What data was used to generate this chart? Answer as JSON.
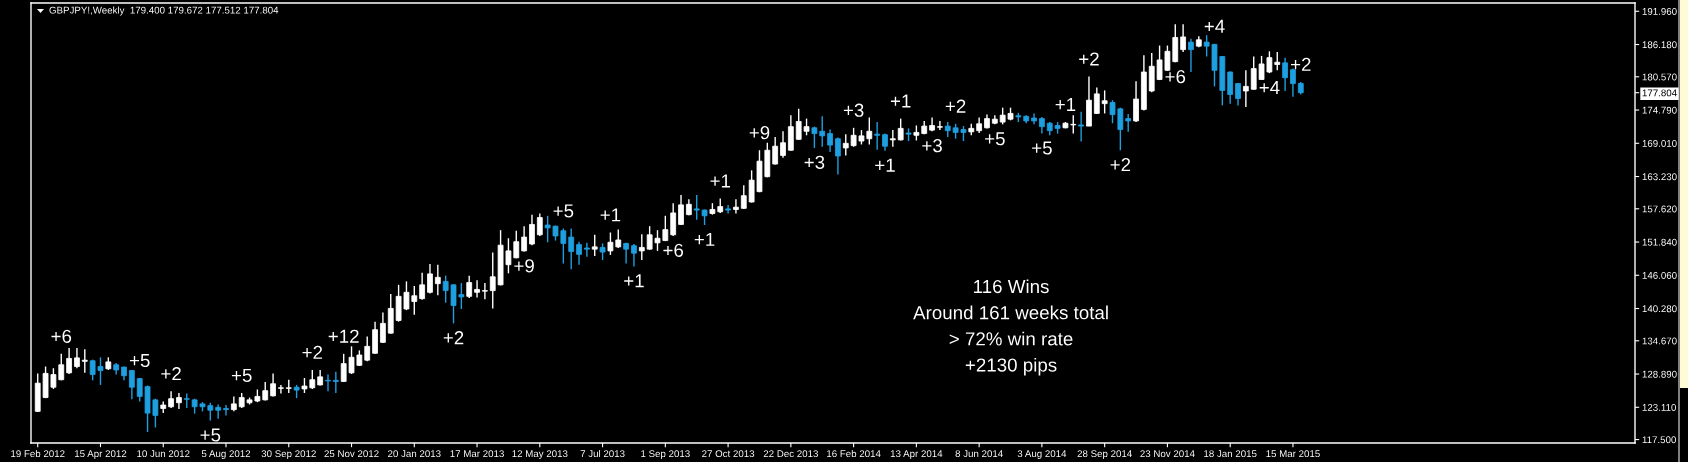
{
  "chart_data": {
    "type": "candlestick",
    "title": "GBPJPY!,Weekly  179.400 179.672 177.512 177.804",
    "x": [
      "2012-02-19",
      "2012-02-26",
      "2012-03-04",
      "2012-03-11",
      "2012-03-18",
      "2012-03-25",
      "2012-04-01",
      "2012-04-08",
      "2012-04-15",
      "2012-04-22",
      "2012-04-29",
      "2012-05-06",
      "2012-05-13",
      "2012-05-20",
      "2012-05-27",
      "2012-06-03",
      "2012-06-10",
      "2012-06-17",
      "2012-06-24",
      "2012-07-01",
      "2012-07-08",
      "2012-07-15",
      "2012-07-22",
      "2012-07-29",
      "2012-08-05",
      "2012-08-12",
      "2012-08-19",
      "2012-08-26",
      "2012-09-02",
      "2012-09-09",
      "2012-09-16",
      "2012-09-23",
      "2012-09-30",
      "2012-10-07",
      "2012-10-14",
      "2012-10-21",
      "2012-10-28",
      "2012-11-04",
      "2012-11-11",
      "2012-11-18",
      "2012-11-25",
      "2012-12-02",
      "2012-12-09",
      "2012-12-16",
      "2012-12-23",
      "2012-12-30",
      "2013-01-06",
      "2013-01-13",
      "2013-01-20",
      "2013-01-27",
      "2013-02-03",
      "2013-02-10",
      "2013-02-17",
      "2013-02-24",
      "2013-03-03",
      "2013-03-10",
      "2013-03-17",
      "2013-03-24",
      "2013-03-31",
      "2013-04-07",
      "2013-04-14",
      "2013-04-21",
      "2013-04-28",
      "2013-05-05",
      "2013-05-12",
      "2013-05-19",
      "2013-05-26",
      "2013-06-02",
      "2013-06-09",
      "2013-06-16",
      "2013-06-23",
      "2013-06-30",
      "2013-07-07",
      "2013-07-14",
      "2013-07-21",
      "2013-07-28",
      "2013-08-04",
      "2013-08-11",
      "2013-08-18",
      "2013-08-25",
      "2013-09-01",
      "2013-09-08",
      "2013-09-15",
      "2013-09-22",
      "2013-09-29",
      "2013-10-06",
      "2013-10-13",
      "2013-10-20",
      "2013-10-27",
      "2013-11-03",
      "2013-11-10",
      "2013-11-17",
      "2013-11-24",
      "2013-12-01",
      "2013-12-08",
      "2013-12-15",
      "2013-12-22",
      "2013-12-29",
      "2014-01-05",
      "2014-01-12",
      "2014-01-19",
      "2014-01-26",
      "2014-02-02",
      "2014-02-09",
      "2014-02-16",
      "2014-02-23",
      "2014-03-02",
      "2014-03-09",
      "2014-03-16",
      "2014-03-23",
      "2014-03-30",
      "2014-04-06",
      "2014-04-13",
      "2014-04-20",
      "2014-04-27",
      "2014-05-04",
      "2014-05-11",
      "2014-05-18",
      "2014-05-25",
      "2014-06-01",
      "2014-06-08",
      "2014-06-15",
      "2014-06-22",
      "2014-06-29",
      "2014-07-06",
      "2014-07-13",
      "2014-07-20",
      "2014-07-27",
      "2014-08-03",
      "2014-08-10",
      "2014-08-17",
      "2014-08-24",
      "2014-08-31",
      "2014-09-07",
      "2014-09-14",
      "2014-09-21",
      "2014-09-28",
      "2014-10-05",
      "2014-10-12",
      "2014-10-19",
      "2014-10-26",
      "2014-11-02",
      "2014-11-09",
      "2014-11-16",
      "2014-11-23",
      "2014-11-30",
      "2014-12-07",
      "2014-12-14",
      "2014-12-21",
      "2014-12-28",
      "2015-01-04",
      "2015-01-11",
      "2015-01-18",
      "2015-01-25",
      "2015-02-01",
      "2015-02-08",
      "2015-02-15",
      "2015-02-22",
      "2015-03-01",
      "2015-03-08",
      "2015-03-15",
      "2015-03-22"
    ],
    "ohlc": [
      [
        122.4,
        129.0,
        122.3,
        127.3
      ],
      [
        124.8,
        130.2,
        124.7,
        129.0
      ],
      [
        126.6,
        129.9,
        126.3,
        128.8
      ],
      [
        127.9,
        132.4,
        127.8,
        130.5
      ],
      [
        129.1,
        133.4,
        128.9,
        131.6
      ],
      [
        130.2,
        133.4,
        129.9,
        131.7
      ],
      [
        131.1,
        133.2,
        129.1,
        131.3
      ],
      [
        131.2,
        131.4,
        127.8,
        128.8
      ],
      [
        130.2,
        131.8,
        127.0,
        129.5
      ],
      [
        129.8,
        131.8,
        129.6,
        131.0
      ],
      [
        130.5,
        130.8,
        128.8,
        129.6
      ],
      [
        130.1,
        130.2,
        127.8,
        128.6
      ],
      [
        129.5,
        129.6,
        124.5,
        126.6
      ],
      [
        128.1,
        128.2,
        124.1,
        125.0
      ],
      [
        126.7,
        126.9,
        118.8,
        122.1
      ],
      [
        124.4,
        124.6,
        119.6,
        121.7
      ],
      [
        122.9,
        124.1,
        122.1,
        123.5
      ],
      [
        123.2,
        125.9,
        123.0,
        124.6
      ],
      [
        123.9,
        125.6,
        122.8,
        124.8
      ],
      [
        124.6,
        125.5,
        123.0,
        124.5
      ],
      [
        124.4,
        124.6,
        122.0,
        123.2
      ],
      [
        123.7,
        124.0,
        122.4,
        123.2
      ],
      [
        123.4,
        123.9,
        120.8,
        122.6
      ],
      [
        123.1,
        123.6,
        121.1,
        122.6
      ],
      [
        122.9,
        123.5,
        121.7,
        122.7
      ],
      [
        122.7,
        125.0,
        122.4,
        123.7
      ],
      [
        123.2,
        125.6,
        123.0,
        124.8
      ],
      [
        123.9,
        124.8,
        123.6,
        124.4
      ],
      [
        124.2,
        126.2,
        124.0,
        125.0
      ],
      [
        124.4,
        127.5,
        124.3,
        126.0
      ],
      [
        125.1,
        129.0,
        125.0,
        127.2
      ],
      [
        126.4,
        127.0,
        125.5,
        126.5
      ],
      [
        126.4,
        127.9,
        125.6,
        126.5
      ],
      [
        126.6,
        127.0,
        124.7,
        126.1
      ],
      [
        126.3,
        128.2,
        125.6,
        126.8
      ],
      [
        126.5,
        129.6,
        126.3,
        127.9
      ],
      [
        127.0,
        129.6,
        126.9,
        128.4
      ],
      [
        127.8,
        128.8,
        125.9,
        127.7
      ],
      [
        127.8,
        129.3,
        125.6,
        127.6
      ],
      [
        127.6,
        132.4,
        127.5,
        130.7
      ],
      [
        129.1,
        133.7,
        128.9,
        131.8
      ],
      [
        130.4,
        133.0,
        130.3,
        132.2
      ],
      [
        131.3,
        135.4,
        131.1,
        133.7
      ],
      [
        132.5,
        138.0,
        132.4,
        136.6
      ],
      [
        134.4,
        139.6,
        134.3,
        137.7
      ],
      [
        136.0,
        142.8,
        135.9,
        140.3
      ],
      [
        138.2,
        144.4,
        138.0,
        142.4
      ],
      [
        140.2,
        145.0,
        140.0,
        143.1
      ],
      [
        141.5,
        144.2,
        139.2,
        142.5
      ],
      [
        142.0,
        146.5,
        141.8,
        144.4
      ],
      [
        143.1,
        148.0,
        142.9,
        146.3
      ],
      [
        144.6,
        147.9,
        142.6,
        145.7
      ],
      [
        145.0,
        146.0,
        141.3,
        143.4
      ],
      [
        144.4,
        144.5,
        137.7,
        140.8
      ],
      [
        142.7,
        144.7,
        140.2,
        142.3
      ],
      [
        142.4,
        146.0,
        142.1,
        144.8
      ],
      [
        143.1,
        145.2,
        142.2,
        143.6
      ],
      [
        143.3,
        144.7,
        141.9,
        143.4
      ],
      [
        143.4,
        150.0,
        140.3,
        145.8
      ],
      [
        144.4,
        153.9,
        144.3,
        151.3
      ],
      [
        147.9,
        152.5,
        146.4,
        150.3
      ],
      [
        149.1,
        153.8,
        149.0,
        151.9
      ],
      [
        150.3,
        154.6,
        150.2,
        152.7
      ],
      [
        151.5,
        156.6,
        151.3,
        154.9
      ],
      [
        153.1,
        156.8,
        152.9,
        156.1
      ],
      [
        154.8,
        156.4,
        151.8,
        154.3
      ],
      [
        154.6,
        154.7,
        152.1,
        152.9
      ],
      [
        153.8,
        154.2,
        148.1,
        151.6
      ],
      [
        152.7,
        154.2,
        147.1,
        150.2
      ],
      [
        151.4,
        151.9,
        147.9,
        149.7
      ],
      [
        150.8,
        151.7,
        149.3,
        150.6
      ],
      [
        150.6,
        153.1,
        149.4,
        151.0
      ],
      [
        150.9,
        151.6,
        148.7,
        150.1
      ],
      [
        150.3,
        153.5,
        149.6,
        151.8
      ],
      [
        151.0,
        154.0,
        150.8,
        152.2
      ],
      [
        151.6,
        151.7,
        148.1,
        150.6
      ],
      [
        151.2,
        151.5,
        147.6,
        149.9
      ],
      [
        150.3,
        153.2,
        148.7,
        150.9
      ],
      [
        150.6,
        154.6,
        150.5,
        153.1
      ],
      [
        151.7,
        153.9,
        150.3,
        152.5
      ],
      [
        152.1,
        156.4,
        152.0,
        154.0
      ],
      [
        153.1,
        158.6,
        152.9,
        156.9
      ],
      [
        154.9,
        160.0,
        154.8,
        158.3
      ],
      [
        156.6,
        159.3,
        156.5,
        158.4
      ],
      [
        157.6,
        160.0,
        155.7,
        157.4
      ],
      [
        157.4,
        157.5,
        154.8,
        156.4
      ],
      [
        156.8,
        158.6,
        156.6,
        157.5
      ],
      [
        157.1,
        159.4,
        156.9,
        158.0
      ],
      [
        157.6,
        158.3,
        156.8,
        157.4
      ],
      [
        157.5,
        159.3,
        156.8,
        157.9
      ],
      [
        157.7,
        161.7,
        157.6,
        159.9
      ],
      [
        158.8,
        164.3,
        158.7,
        162.6
      ],
      [
        160.6,
        167.8,
        160.5,
        165.9
      ],
      [
        163.2,
        169.1,
        163.1,
        167.8
      ],
      [
        165.4,
        170.1,
        165.3,
        168.5
      ],
      [
        166.9,
        171.1,
        166.5,
        169.1
      ],
      [
        167.8,
        173.9,
        167.7,
        171.9
      ],
      [
        169.7,
        175.0,
        169.6,
        172.8
      ],
      [
        171.1,
        173.3,
        170.4,
        171.9
      ],
      [
        171.7,
        171.9,
        168.2,
        170.7
      ],
      [
        171.1,
        173.7,
        168.4,
        170.3
      ],
      [
        170.7,
        171.4,
        167.5,
        168.7
      ],
      [
        169.8,
        170.0,
        163.6,
        166.8
      ],
      [
        168.2,
        170.6,
        166.9,
        169.0
      ],
      [
        168.6,
        171.7,
        168.4,
        170.4
      ],
      [
        169.4,
        171.3,
        168.8,
        170.3
      ],
      [
        169.8,
        173.5,
        168.8,
        171.1
      ],
      [
        170.6,
        172.7,
        167.9,
        170.4
      ],
      [
        170.5,
        170.7,
        167.7,
        168.5
      ],
      [
        169.6,
        171.3,
        168.4,
        169.8
      ],
      [
        169.6,
        173.3,
        169.5,
        171.6
      ],
      [
        170.8,
        171.6,
        169.4,
        170.6
      ],
      [
        170.4,
        172.1,
        169.5,
        170.9
      ],
      [
        170.7,
        172.9,
        170.6,
        172.0
      ],
      [
        171.3,
        173.5,
        171.1,
        172.1
      ],
      [
        171.8,
        172.9,
        171.3,
        171.9
      ],
      [
        172.0,
        172.7,
        170.1,
        171.2
      ],
      [
        171.7,
        172.4,
        169.8,
        170.9
      ],
      [
        171.4,
        172.0,
        169.4,
        170.9
      ],
      [
        171.0,
        172.4,
        170.4,
        171.6
      ],
      [
        171.2,
        173.5,
        170.8,
        172.4
      ],
      [
        171.7,
        174.0,
        171.6,
        173.3
      ],
      [
        172.5,
        173.9,
        172.3,
        173.2
      ],
      [
        172.7,
        175.2,
        172.3,
        173.9
      ],
      [
        173.2,
        175.2,
        173.0,
        174.2
      ],
      [
        173.8,
        174.3,
        172.7,
        173.6
      ],
      [
        173.7,
        173.9,
        172.5,
        172.9
      ],
      [
        173.4,
        174.2,
        172.3,
        172.9
      ],
      [
        173.3,
        173.6,
        170.7,
        171.9
      ],
      [
        172.5,
        172.7,
        170.4,
        171.2
      ],
      [
        172.1,
        172.7,
        170.7,
        171.6
      ],
      [
        171.7,
        172.7,
        171.6,
        172.5
      ],
      [
        172.2,
        173.9,
        170.7,
        172.3
      ],
      [
        172.2,
        174.5,
        169.3,
        172.0
      ],
      [
        172.0,
        180.6,
        172.0,
        176.5
      ],
      [
        174.2,
        178.7,
        174.1,
        177.6
      ],
      [
        175.9,
        178.2,
        174.2,
        176.4
      ],
      [
        176.1,
        176.5,
        172.5,
        174.0
      ],
      [
        175.0,
        175.2,
        167.8,
        171.4
      ],
      [
        173.3,
        174.1,
        171.0,
        172.9
      ],
      [
        172.9,
        179.8,
        172.7,
        176.7
      ],
      [
        174.9,
        184.3,
        174.7,
        181.4
      ],
      [
        178.1,
        184.7,
        177.9,
        182.4
      ],
      [
        180.1,
        186.0,
        180.0,
        183.5
      ],
      [
        181.7,
        186.0,
        181.6,
        185.0
      ],
      [
        183.2,
        189.7,
        183.1,
        187.4
      ],
      [
        185.3,
        189.7,
        184.9,
        187.5
      ],
      [
        186.6,
        187.2,
        181.4,
        185.3
      ],
      [
        185.9,
        187.6,
        185.7,
        187.0
      ],
      [
        186.6,
        187.8,
        184.1,
        185.9
      ],
      [
        186.2,
        186.3,
        178.9,
        181.7
      ],
      [
        184.1,
        184.2,
        175.6,
        178.2
      ],
      [
        181.4,
        181.5,
        175.9,
        177.5
      ],
      [
        179.4,
        179.5,
        175.6,
        176.8
      ],
      [
        178.1,
        181.7,
        175.3,
        178.9
      ],
      [
        178.4,
        184.1,
        178.3,
        182.0
      ],
      [
        180.1,
        184.2,
        180.1,
        182.8
      ],
      [
        181.4,
        185.0,
        181.2,
        183.9
      ],
      [
        182.7,
        184.9,
        181.7,
        183.1
      ],
      [
        183.0,
        183.9,
        178.1,
        180.4
      ],
      [
        181.8,
        182.0,
        177.1,
        179.4
      ],
      [
        179.4,
        179.672,
        177.512,
        177.804
      ]
    ],
    "colors": [
      "#ffffff",
      "#ffffff",
      "#ffffff",
      "#ffffff",
      "#ffffff",
      "#ffffff",
      "#ffffff",
      "#1e9fe0",
      "#1e9fe0",
      "#ffffff",
      "#1e9fe0",
      "#1e9fe0",
      "#1e9fe0",
      "#1e9fe0",
      "#1e9fe0",
      "#1e9fe0",
      "#ffffff",
      "#ffffff",
      "#ffffff",
      "#1e9fe0",
      "#1e9fe0",
      "#1e9fe0",
      "#1e9fe0",
      "#1e9fe0",
      "#1e9fe0",
      "#ffffff",
      "#ffffff",
      "#ffffff",
      "#ffffff",
      "#ffffff",
      "#ffffff",
      "#ffffff",
      "#ffffff",
      "#1e9fe0",
      "#ffffff",
      "#ffffff",
      "#ffffff",
      "#1e9fe0",
      "#1e9fe0",
      "#ffffff",
      "#ffffff",
      "#ffffff",
      "#ffffff",
      "#ffffff",
      "#ffffff",
      "#ffffff",
      "#ffffff",
      "#ffffff",
      "#ffffff",
      "#ffffff",
      "#ffffff",
      "#ffffff",
      "#1e9fe0",
      "#1e9fe0",
      "#1e9fe0",
      "#ffffff",
      "#ffffff",
      "#ffffff",
      "#ffffff",
      "#ffffff",
      "#ffffff",
      "#ffffff",
      "#ffffff",
      "#ffffff",
      "#ffffff",
      "#1e9fe0",
      "#1e9fe0",
      "#1e9fe0",
      "#1e9fe0",
      "#1e9fe0",
      "#1e9fe0",
      "#ffffff",
      "#1e9fe0",
      "#ffffff",
      "#ffffff",
      "#1e9fe0",
      "#1e9fe0",
      "#ffffff",
      "#ffffff",
      "#ffffff",
      "#ffffff",
      "#ffffff",
      "#ffffff",
      "#ffffff",
      "#1e9fe0",
      "#1e9fe0",
      "#ffffff",
      "#ffffff",
      "#1e9fe0",
      "#ffffff",
      "#ffffff",
      "#ffffff",
      "#ffffff",
      "#ffffff",
      "#ffffff",
      "#ffffff",
      "#ffffff",
      "#ffffff",
      "#ffffff",
      "#1e9fe0",
      "#1e9fe0",
      "#1e9fe0",
      "#1e9fe0",
      "#ffffff",
      "#ffffff",
      "#ffffff",
      "#ffffff",
      "#1e9fe0",
      "#1e9fe0",
      "#ffffff",
      "#ffffff",
      "#1e9fe0",
      "#ffffff",
      "#ffffff",
      "#ffffff",
      "#ffffff",
      "#1e9fe0",
      "#1e9fe0",
      "#1e9fe0",
      "#ffffff",
      "#ffffff",
      "#ffffff",
      "#ffffff",
      "#ffffff",
      "#ffffff",
      "#1e9fe0",
      "#1e9fe0",
      "#1e9fe0",
      "#1e9fe0",
      "#1e9fe0",
      "#1e9fe0",
      "#ffffff",
      "#ffffff",
      "#1e9fe0",
      "#ffffff",
      "#ffffff",
      "#ffffff",
      "#1e9fe0",
      "#1e9fe0",
      "#1e9fe0",
      "#ffffff",
      "#ffffff",
      "#ffffff",
      "#ffffff",
      "#ffffff",
      "#ffffff",
      "#ffffff",
      "#1e9fe0",
      "#ffffff",
      "#1e9fe0",
      "#1e9fe0",
      "#1e9fe0",
      "#1e9fe0",
      "#1e9fe0",
      "#ffffff",
      "#ffffff",
      "#ffffff",
      "#ffffff",
      "#ffffff",
      "#1e9fe0",
      "#1e9fe0",
      "#1e9fe0"
    ],
    "xlim": [
      "2012-02-13T00:00",
      "2016-01-14T05:00"
    ],
    "xticks": [
      {
        "value": "2012-02-19",
        "label": "19 Feb 2012"
      },
      {
        "value": "2012-04-15",
        "label": "15 Apr 2012"
      },
      {
        "value": "2012-06-10",
        "label": "10 Jun 2012"
      },
      {
        "value": "2012-08-05",
        "label": "5 Aug 2012"
      },
      {
        "value": "2012-09-30",
        "label": "30 Sep 2012"
      },
      {
        "value": "2012-11-25",
        "label": "25 Nov 2012"
      },
      {
        "value": "2013-01-20",
        "label": "20 Jan 2013"
      },
      {
        "value": "2013-03-17",
        "label": "17 Mar 2013"
      },
      {
        "value": "2013-05-12",
        "label": "12 May 2013"
      },
      {
        "value": "2013-07-07",
        "label": "7 Jul 2013"
      },
      {
        "value": "2013-09-01",
        "label": "1 Sep 2013"
      },
      {
        "value": "2013-10-27",
        "label": "27 Oct 2013"
      },
      {
        "value": "2013-12-22",
        "label": "22 Dec 2013"
      },
      {
        "value": "2014-02-16",
        "label": "16 Feb 2014"
      },
      {
        "value": "2014-04-13",
        "label": "13 Apr 2014"
      },
      {
        "value": "2014-06-08",
        "label": "8 Jun 2014"
      },
      {
        "value": "2014-08-03",
        "label": "3 Aug 2014"
      },
      {
        "value": "2014-09-28",
        "label": "28 Sep 2014"
      },
      {
        "value": "2014-11-23",
        "label": "23 Nov 2014"
      },
      {
        "value": "2015-01-18",
        "label": "18 Jan 2015"
      },
      {
        "value": "2015-03-15",
        "label": "15 Mar 2015"
      }
    ],
    "ylim": [
      116.9,
      193.4
    ],
    "yticks": [
      {
        "value": 117.5,
        "label": "117.500"
      },
      {
        "value": 123.11,
        "label": "123.110"
      },
      {
        "value": 128.89,
        "label": "128.890"
      },
      {
        "value": 134.67,
        "label": "134.670"
      },
      {
        "value": 140.28,
        "label": "140.280"
      },
      {
        "value": 146.06,
        "label": "146.060"
      },
      {
        "value": 151.84,
        "label": "151.840"
      },
      {
        "value": 157.62,
        "label": "157.620"
      },
      {
        "value": 163.23,
        "label": "163.230"
      },
      {
        "value": 169.01,
        "label": "169.010"
      },
      {
        "value": 174.79,
        "label": "174.790"
      },
      {
        "value": 177.804,
        "label": "177.804"
      },
      {
        "value": 180.57,
        "label": "180.570"
      },
      {
        "value": 186.18,
        "label": "186.180"
      },
      {
        "value": 191.96,
        "label": "191.960"
      }
    ],
    "annotations": [
      {
        "text": "+6",
        "x": "2012-03-11",
        "y": 132.4
      },
      {
        "text": "+5",
        "x": "2012-05-20",
        "y": 128.2
      },
      {
        "text": "+2",
        "x": "2012-06-17",
        "y": 125.9
      },
      {
        "text": "+5",
        "x": "2012-07-22",
        "y": 120.8
      },
      {
        "text": "+5",
        "x": "2012-08-19",
        "y": 125.6
      },
      {
        "text": "+2",
        "x": "2012-10-21",
        "y": 129.6
      },
      {
        "text": "+12",
        "x": "2012-11-18",
        "y": 132.4
      },
      {
        "text": "+2",
        "x": "2013-02-24",
        "y": 137.7
      },
      {
        "text": "+9",
        "x": "2013-04-28",
        "y": 150.2
      },
      {
        "text": "+5",
        "x": "2013-06-02",
        "y": 154.2
      },
      {
        "text": "+1",
        "x": "2013-07-14",
        "y": 153.5
      },
      {
        "text": "+1",
        "x": "2013-08-04",
        "y": 147.6
      },
      {
        "text": "+6",
        "x": "2013-09-08",
        "y": 152.9
      },
      {
        "text": "+1",
        "x": "2013-10-06",
        "y": 154.8
      },
      {
        "text": "+1",
        "x": "2013-10-20",
        "y": 159.4
      },
      {
        "text": "+9",
        "x": "2013-11-24",
        "y": 167.8
      },
      {
        "text": "+3",
        "x": "2014-01-12",
        "y": 168.2
      },
      {
        "text": "+3",
        "x": "2014-02-16",
        "y": 171.7
      },
      {
        "text": "+1",
        "x": "2014-03-16",
        "y": 167.7
      },
      {
        "text": "+1",
        "x": "2014-03-30",
        "y": 173.3
      },
      {
        "text": "+3",
        "x": "2014-04-27",
        "y": 171.1
      },
      {
        "text": "+2",
        "x": "2014-05-18",
        "y": 172.4
      },
      {
        "text": "+5",
        "x": "2014-06-22",
        "y": 172.3
      },
      {
        "text": "+5",
        "x": "2014-08-03",
        "y": 170.7
      },
      {
        "text": "+1",
        "x": "2014-08-24",
        "y": 172.7
      },
      {
        "text": "+2",
        "x": "2014-09-14",
        "y": 180.6
      },
      {
        "text": "+2",
        "x": "2014-10-12",
        "y": 167.8
      },
      {
        "text": "+6",
        "x": "2014-11-30",
        "y": 183.1
      },
      {
        "text": "+4",
        "x": "2015-01-04",
        "y": 186.3
      },
      {
        "text": "+4",
        "x": "2015-02-22",
        "y": 181.2
      },
      {
        "text": "+2",
        "x": "2015-03-22",
        "y": 179.672
      },
      "116 Wins",
      "Around 161 weeks total",
      "> 72% win rate",
      "+2130 pips"
    ]
  }
}
